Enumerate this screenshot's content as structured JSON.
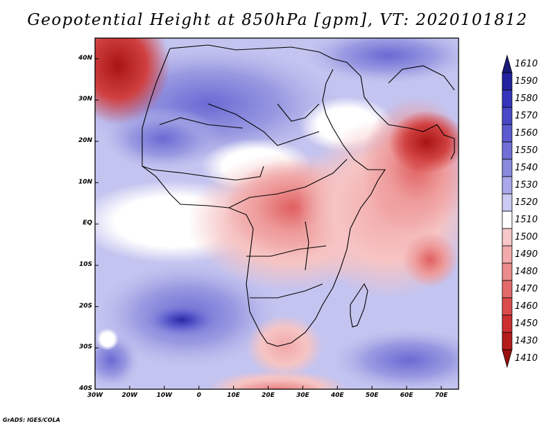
{
  "title": "Geopotential Height at 850hPa [gpm], VT: 2020101812",
  "credit": "GrADS: IGES/COLA",
  "chart_data": {
    "type": "heatmap",
    "variable": "Geopotential Height at 850hPa",
    "units": "gpm",
    "valid_time": "2020101812",
    "lon_range": [
      -30,
      75
    ],
    "lat_range": [
      -40,
      45
    ],
    "x_ticks": [
      {
        "value": -30,
        "label": "30W"
      },
      {
        "value": -20,
        "label": "20W"
      },
      {
        "value": -10,
        "label": "10W"
      },
      {
        "value": 0,
        "label": "0"
      },
      {
        "value": 10,
        "label": "10E"
      },
      {
        "value": 20,
        "label": "20E"
      },
      {
        "value": 30,
        "label": "30E"
      },
      {
        "value": 40,
        "label": "40E"
      },
      {
        "value": 50,
        "label": "50E"
      },
      {
        "value": 60,
        "label": "60E"
      },
      {
        "value": 70,
        "label": "70E"
      }
    ],
    "y_ticks": [
      {
        "value": 40,
        "label": "40N"
      },
      {
        "value": 30,
        "label": "30N"
      },
      {
        "value": 20,
        "label": "20N"
      },
      {
        "value": 10,
        "label": "10N"
      },
      {
        "value": 0,
        "label": "EQ"
      },
      {
        "value": -10,
        "label": "10S"
      },
      {
        "value": -20,
        "label": "20S"
      },
      {
        "value": -30,
        "label": "30S"
      },
      {
        "value": -40,
        "label": "40S"
      }
    ],
    "colorbar": {
      "levels": [
        1610,
        1590,
        1580,
        1570,
        1560,
        1550,
        1540,
        1530,
        1520,
        1510,
        1500,
        1490,
        1480,
        1470,
        1460,
        1450,
        1430,
        1410
      ],
      "colors": [
        "#1a1a7a",
        "#2222a0",
        "#3535bb",
        "#4848c8",
        "#5c5cd0",
        "#7070d8",
        "#8a8ae0",
        "#a8a8ea",
        "#cacaf2",
        "#ffffff",
        "#f6c8c8",
        "#f2aaaa",
        "#ec8c8c",
        "#e46a6a",
        "#dc4c4c",
        "#cc3030",
        "#b41c1c",
        "#9a1010"
      ]
    }
  }
}
